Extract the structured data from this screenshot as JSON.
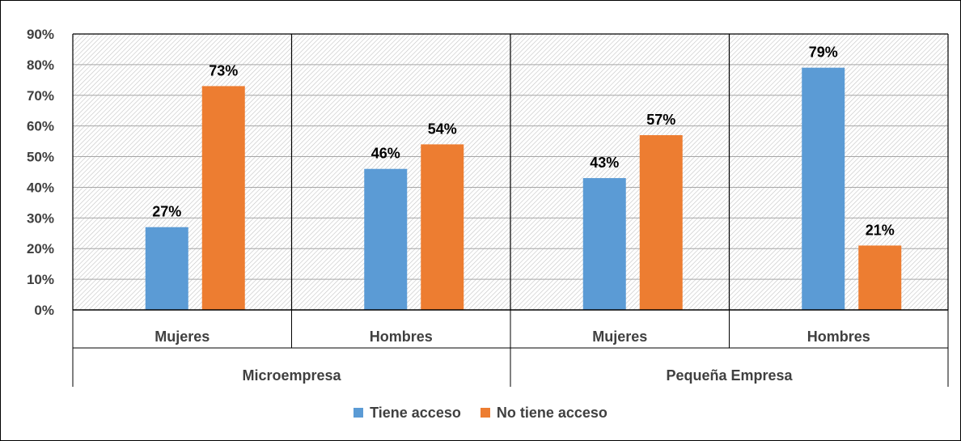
{
  "chart_data": {
    "type": "bar",
    "groups": [
      {
        "label": "Microempresa",
        "categories": [
          "Mujeres",
          "Hombres"
        ]
      },
      {
        "label": "Pequeña Empresa",
        "categories": [
          "Mujeres",
          "Hombres"
        ]
      }
    ],
    "categories": [
      "Mujeres",
      "Hombres",
      "Mujeres",
      "Hombres"
    ],
    "series": [
      {
        "name": "Tiene acceso",
        "color": "#5B9BD5",
        "values": [
          27,
          46,
          43,
          79
        ],
        "labels": [
          "27%",
          "46%",
          "43%",
          "79%"
        ]
      },
      {
        "name": "No tiene acceso",
        "color": "#ED7D31",
        "values": [
          73,
          54,
          57,
          21
        ],
        "labels": [
          "73%",
          "54%",
          "57%",
          "21%"
        ]
      }
    ],
    "ylim": [
      0,
      90
    ],
    "yticks": [
      "0%",
      "10%",
      "20%",
      "30%",
      "40%",
      "50%",
      "60%",
      "70%",
      "80%",
      "90%"
    ],
    "grid": true,
    "legend_position": "bottom"
  }
}
